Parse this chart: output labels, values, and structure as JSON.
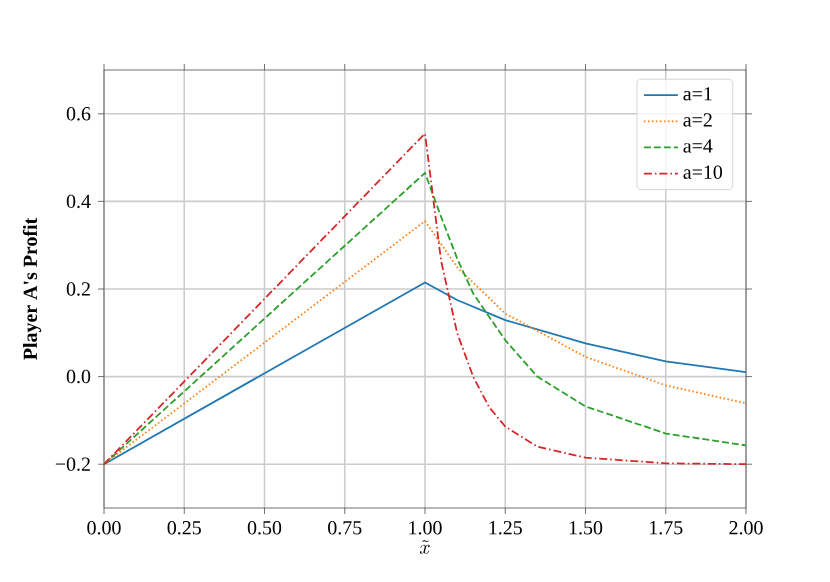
{
  "chart_data": {
    "type": "line",
    "xlabel": "\\tilde{x}",
    "ylabel": "Player A's Profit",
    "xlim": [
      0,
      2
    ],
    "ylim": [
      -0.3,
      0.7
    ],
    "xticks": [
      {
        "value": 0,
        "label": "0.00"
      },
      {
        "value": 0.25,
        "label": "0.25"
      },
      {
        "value": 0.5,
        "label": "0.50"
      },
      {
        "value": 0.75,
        "label": "0.75"
      },
      {
        "value": 1,
        "label": "1.00"
      },
      {
        "value": 1.25,
        "label": "1.25"
      },
      {
        "value": 1.5,
        "label": "1.50"
      },
      {
        "value": 1.75,
        "label": "1.75"
      },
      {
        "value": 2,
        "label": "2.00"
      }
    ],
    "yticks": [
      {
        "value": -0.2,
        "label": "−0.2"
      },
      {
        "value": 0,
        "label": "0.0"
      },
      {
        "value": 0.2,
        "label": "0.2"
      },
      {
        "value": 0.4,
        "label": "0.4"
      },
      {
        "value": 0.6,
        "label": "0.6"
      }
    ],
    "grid": true,
    "legend": "top right",
    "series": [
      {
        "name": "a=1",
        "color": "#1f77b4",
        "line_style": "solid",
        "x": [
          0,
          1,
          1.1,
          1.25,
          1.5,
          1.75,
          2
        ],
        "values": [
          -0.2,
          0.215,
          0.175,
          0.129,
          0.076,
          0.035,
          0.01
        ]
      },
      {
        "name": "a=2",
        "color": "#ff7f0e",
        "line_style": "dotted",
        "x": [
          0,
          1,
          1.1,
          1.25,
          1.5,
          1.75,
          2
        ],
        "values": [
          -0.2,
          0.355,
          0.25,
          0.144,
          0.045,
          -0.02,
          -0.061
        ]
      },
      {
        "name": "a=4",
        "color": "#2ca02c",
        "line_style": "dashed",
        "x": [
          0,
          1,
          1.05,
          1.1,
          1.15,
          1.25,
          1.35,
          1.5,
          1.75,
          2
        ],
        "values": [
          -0.2,
          0.465,
          0.365,
          0.27,
          0.19,
          0.083,
          0.0,
          -0.068,
          -0.13,
          -0.157
        ]
      },
      {
        "name": "a=10",
        "color": "#d62728",
        "line_style": "dashdot",
        "x": [
          0,
          1,
          1.05,
          1.1,
          1.15,
          1.2,
          1.25,
          1.35,
          1.5,
          1.75,
          2
        ],
        "values": [
          -0.2,
          0.555,
          0.265,
          0.1,
          0.0,
          -0.07,
          -0.114,
          -0.16,
          -0.185,
          -0.198,
          -0.2
        ]
      }
    ]
  }
}
